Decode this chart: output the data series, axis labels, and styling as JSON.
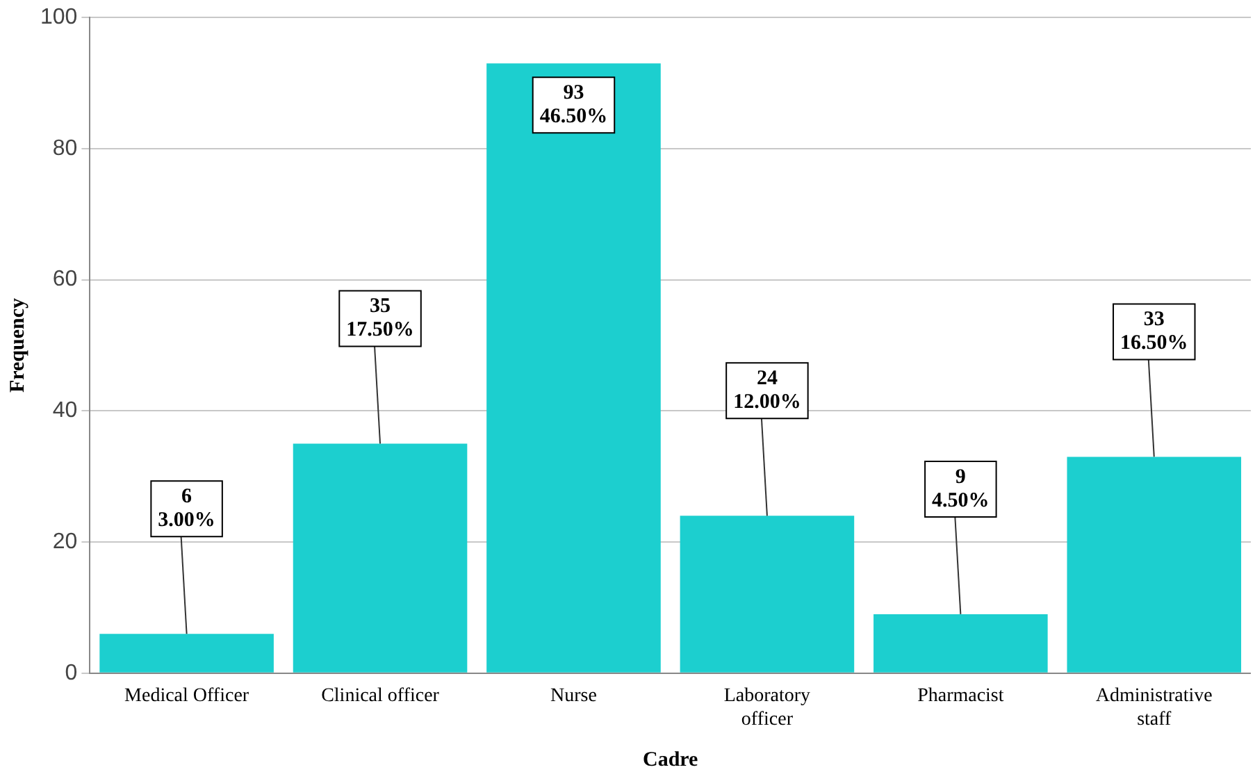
{
  "chart_data": {
    "type": "bar",
    "xlabel": "Cadre",
    "ylabel": "Frequency",
    "categories": [
      "Medical Officer",
      "Clinical officer",
      "Nurse",
      "Laboratory officer",
      "Pharmacist",
      "Administrative staff"
    ],
    "values": [
      6,
      35,
      93,
      24,
      9,
      33
    ],
    "value_labels": [
      "6\n3.00%",
      "35\n17.50%",
      "93\n46.50%",
      "24\n12.00%",
      "9\n4.50%",
      "33\n16.50%"
    ],
    "color": "#1ccfcf",
    "ylim": [
      0,
      100
    ],
    "yticks": [
      0,
      20,
      40,
      60,
      80,
      100
    ],
    "grid": "y",
    "legend": false
  }
}
